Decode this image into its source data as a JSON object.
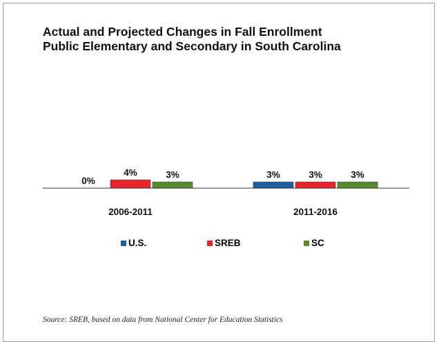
{
  "chart_data": {
    "type": "bar",
    "title_lines": [
      "Actual and Projected Changes in Fall Enrollment",
      "Public Elementary and Secondary in South Carolina"
    ],
    "categories": [
      "2006-2011",
      "2011-2016"
    ],
    "series": [
      {
        "name": "U.S.",
        "values": [
          0,
          3
        ],
        "labels": [
          "0%",
          "3%"
        ],
        "color": "#1f5fa0"
      },
      {
        "name": "SREB",
        "values": [
          4,
          3
        ],
        "labels": [
          "4%",
          "3%"
        ],
        "color": "#e8252c"
      },
      {
        "name": "SC",
        "values": [
          3,
          3
        ],
        "labels": [
          "3%",
          "3%"
        ],
        "color": "#5a8a2e"
      }
    ],
    "ylim": [
      0,
      4
    ],
    "legend_position": "bottom",
    "grid": false,
    "source": "Source: SREB, based on data from National Center for Education Statistics"
  }
}
